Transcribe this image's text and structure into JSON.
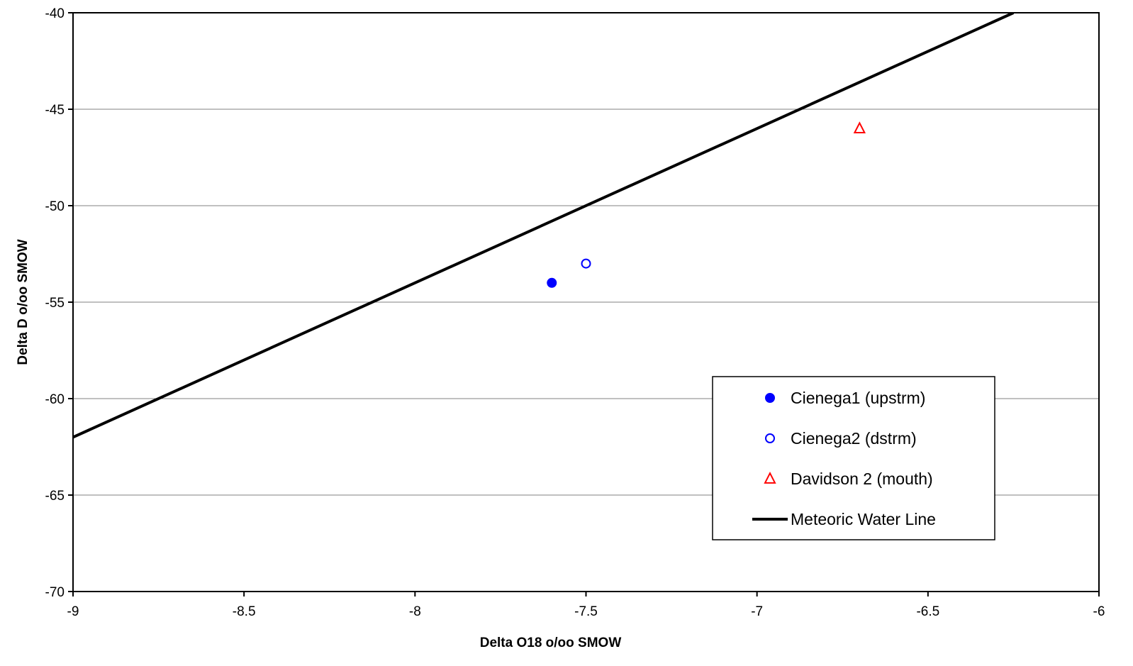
{
  "chart_data": {
    "type": "scatter",
    "title": "",
    "xlabel": "Delta O18 o/oo SMOW",
    "ylabel": "Delta D o/oo SMOW",
    "xlim": [
      -9,
      -6
    ],
    "ylim": [
      -70,
      -40
    ],
    "x_ticks": [
      -9,
      -8.5,
      -8,
      -7.5,
      -7,
      -6.5,
      -6
    ],
    "y_ticks": [
      -70,
      -65,
      -60,
      -55,
      -50,
      -45,
      -40
    ],
    "grid": "horizontal",
    "legend_position": "bottom-right",
    "series": [
      {
        "name": "Cienega1 (upstrm)",
        "marker": "filled-circle",
        "color": "#0000ff",
        "points": [
          {
            "x": -7.6,
            "y": -54
          }
        ]
      },
      {
        "name": "Cienega2 (dstrm)",
        "marker": "open-circle",
        "color": "#0000ff",
        "points": [
          {
            "x": -7.5,
            "y": -53
          }
        ]
      },
      {
        "name": "Davidson 2 (mouth)",
        "marker": "open-triangle",
        "color": "#ff0000",
        "points": [
          {
            "x": -6.7,
            "y": -46
          }
        ]
      },
      {
        "name": "Meteoric Water Line",
        "marker": "line",
        "color": "#000000",
        "points": [
          {
            "x": -9,
            "y": -62
          },
          {
            "x": -6.25,
            "y": -40
          }
        ]
      }
    ]
  }
}
